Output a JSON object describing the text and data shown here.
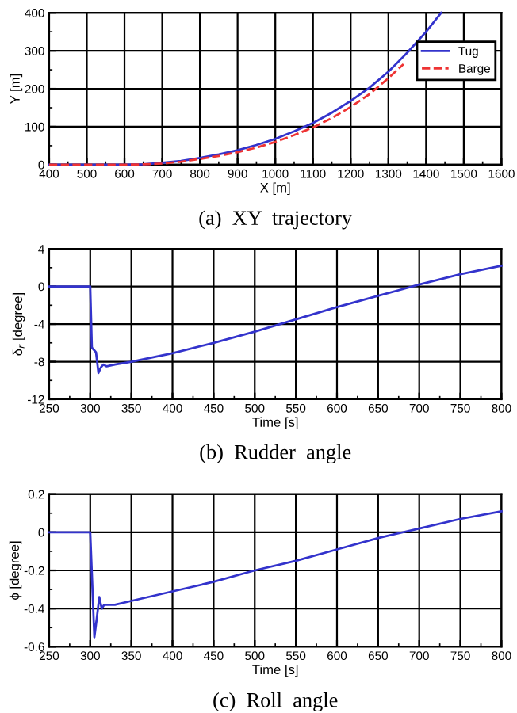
{
  "chart_data": [
    {
      "type": "line",
      "title": "(a)  XY  trajectory",
      "xlabel": "X [m]",
      "ylabel": "Y [m]",
      "xlim": [
        400,
        1600
      ],
      "ylim": [
        0,
        400
      ],
      "xticks": [
        400,
        500,
        600,
        700,
        800,
        900,
        1000,
        1100,
        1200,
        1300,
        1400,
        1500,
        1600
      ],
      "yticks": [
        0,
        100,
        200,
        300,
        400
      ],
      "grid": true,
      "legend": "top right",
      "series": [
        {
          "name": "Tug",
          "color": "#3333cc",
          "line_style": "solid",
          "x": [
            400,
            500,
            600,
            650,
            700,
            750,
            800,
            850,
            900,
            950,
            1000,
            1050,
            1100,
            1150,
            1200,
            1250,
            1300,
            1350,
            1400,
            1440
          ],
          "values": [
            0,
            0,
            0,
            1,
            5,
            10,
            18,
            27,
            38,
            52,
            68,
            88,
            110,
            137,
            168,
            203,
            245,
            295,
            350,
            400
          ]
        },
        {
          "name": "Barge",
          "color": "#ee3333",
          "line_style": "dashed",
          "x": [
            400,
            500,
            600,
            650,
            700,
            750,
            800,
            850,
            900,
            950,
            1000,
            1050,
            1100,
            1150,
            1200,
            1250,
            1300,
            1340
          ],
          "values": [
            0,
            0,
            0,
            1,
            3,
            8,
            15,
            23,
            33,
            45,
            60,
            78,
            98,
            123,
            152,
            186,
            228,
            265
          ]
        }
      ]
    },
    {
      "type": "line",
      "title": "(b)  Rudder  angle",
      "xlabel": "Time [s]",
      "ylabel": "δ$_{r}$ [degree]",
      "xlim": [
        250,
        800
      ],
      "ylim": [
        -12,
        4
      ],
      "xticks": [
        250,
        300,
        350,
        400,
        450,
        500,
        550,
        600,
        650,
        700,
        750,
        800
      ],
      "yticks": [
        -12,
        -8,
        -4,
        0,
        4
      ],
      "grid": true,
      "series": [
        {
          "color": "#3333cc",
          "x": [
            250,
            300,
            302,
            305,
            307,
            310,
            313,
            316,
            320,
            330,
            350,
            400,
            450,
            500,
            550,
            600,
            650,
            700,
            750,
            800
          ],
          "values": [
            0,
            0,
            -6.5,
            -6.8,
            -7,
            -9.2,
            -8.6,
            -8.3,
            -8.5,
            -8.3,
            -8,
            -7.1,
            -6,
            -4.8,
            -3.5,
            -2.2,
            -1,
            0.2,
            1.3,
            2.2
          ]
        }
      ]
    },
    {
      "type": "line",
      "title": "(c)  Roll  angle",
      "xlabel": "Time [s]",
      "ylabel": "ϕ [degree]",
      "xlim": [
        250,
        800
      ],
      "ylim": [
        -0.6,
        0.2
      ],
      "xticks": [
        250,
        300,
        350,
        400,
        450,
        500,
        550,
        600,
        650,
        700,
        750,
        800
      ],
      "yticks": [
        -0.6,
        -0.4,
        -0.2,
        0,
        0.2
      ],
      "grid": true,
      "series": [
        {
          "color": "#3333cc",
          "x": [
            250,
            300,
            305,
            308,
            311,
            314,
            317,
            320,
            330,
            350,
            400,
            450,
            500,
            550,
            600,
            650,
            700,
            750,
            800
          ],
          "values": [
            0,
            0,
            -0.55,
            -0.45,
            -0.34,
            -0.4,
            -0.38,
            -0.38,
            -0.38,
            -0.36,
            -0.31,
            -0.26,
            -0.2,
            -0.15,
            -0.09,
            -0.03,
            0.02,
            0.07,
            0.11
          ]
        }
      ]
    }
  ]
}
